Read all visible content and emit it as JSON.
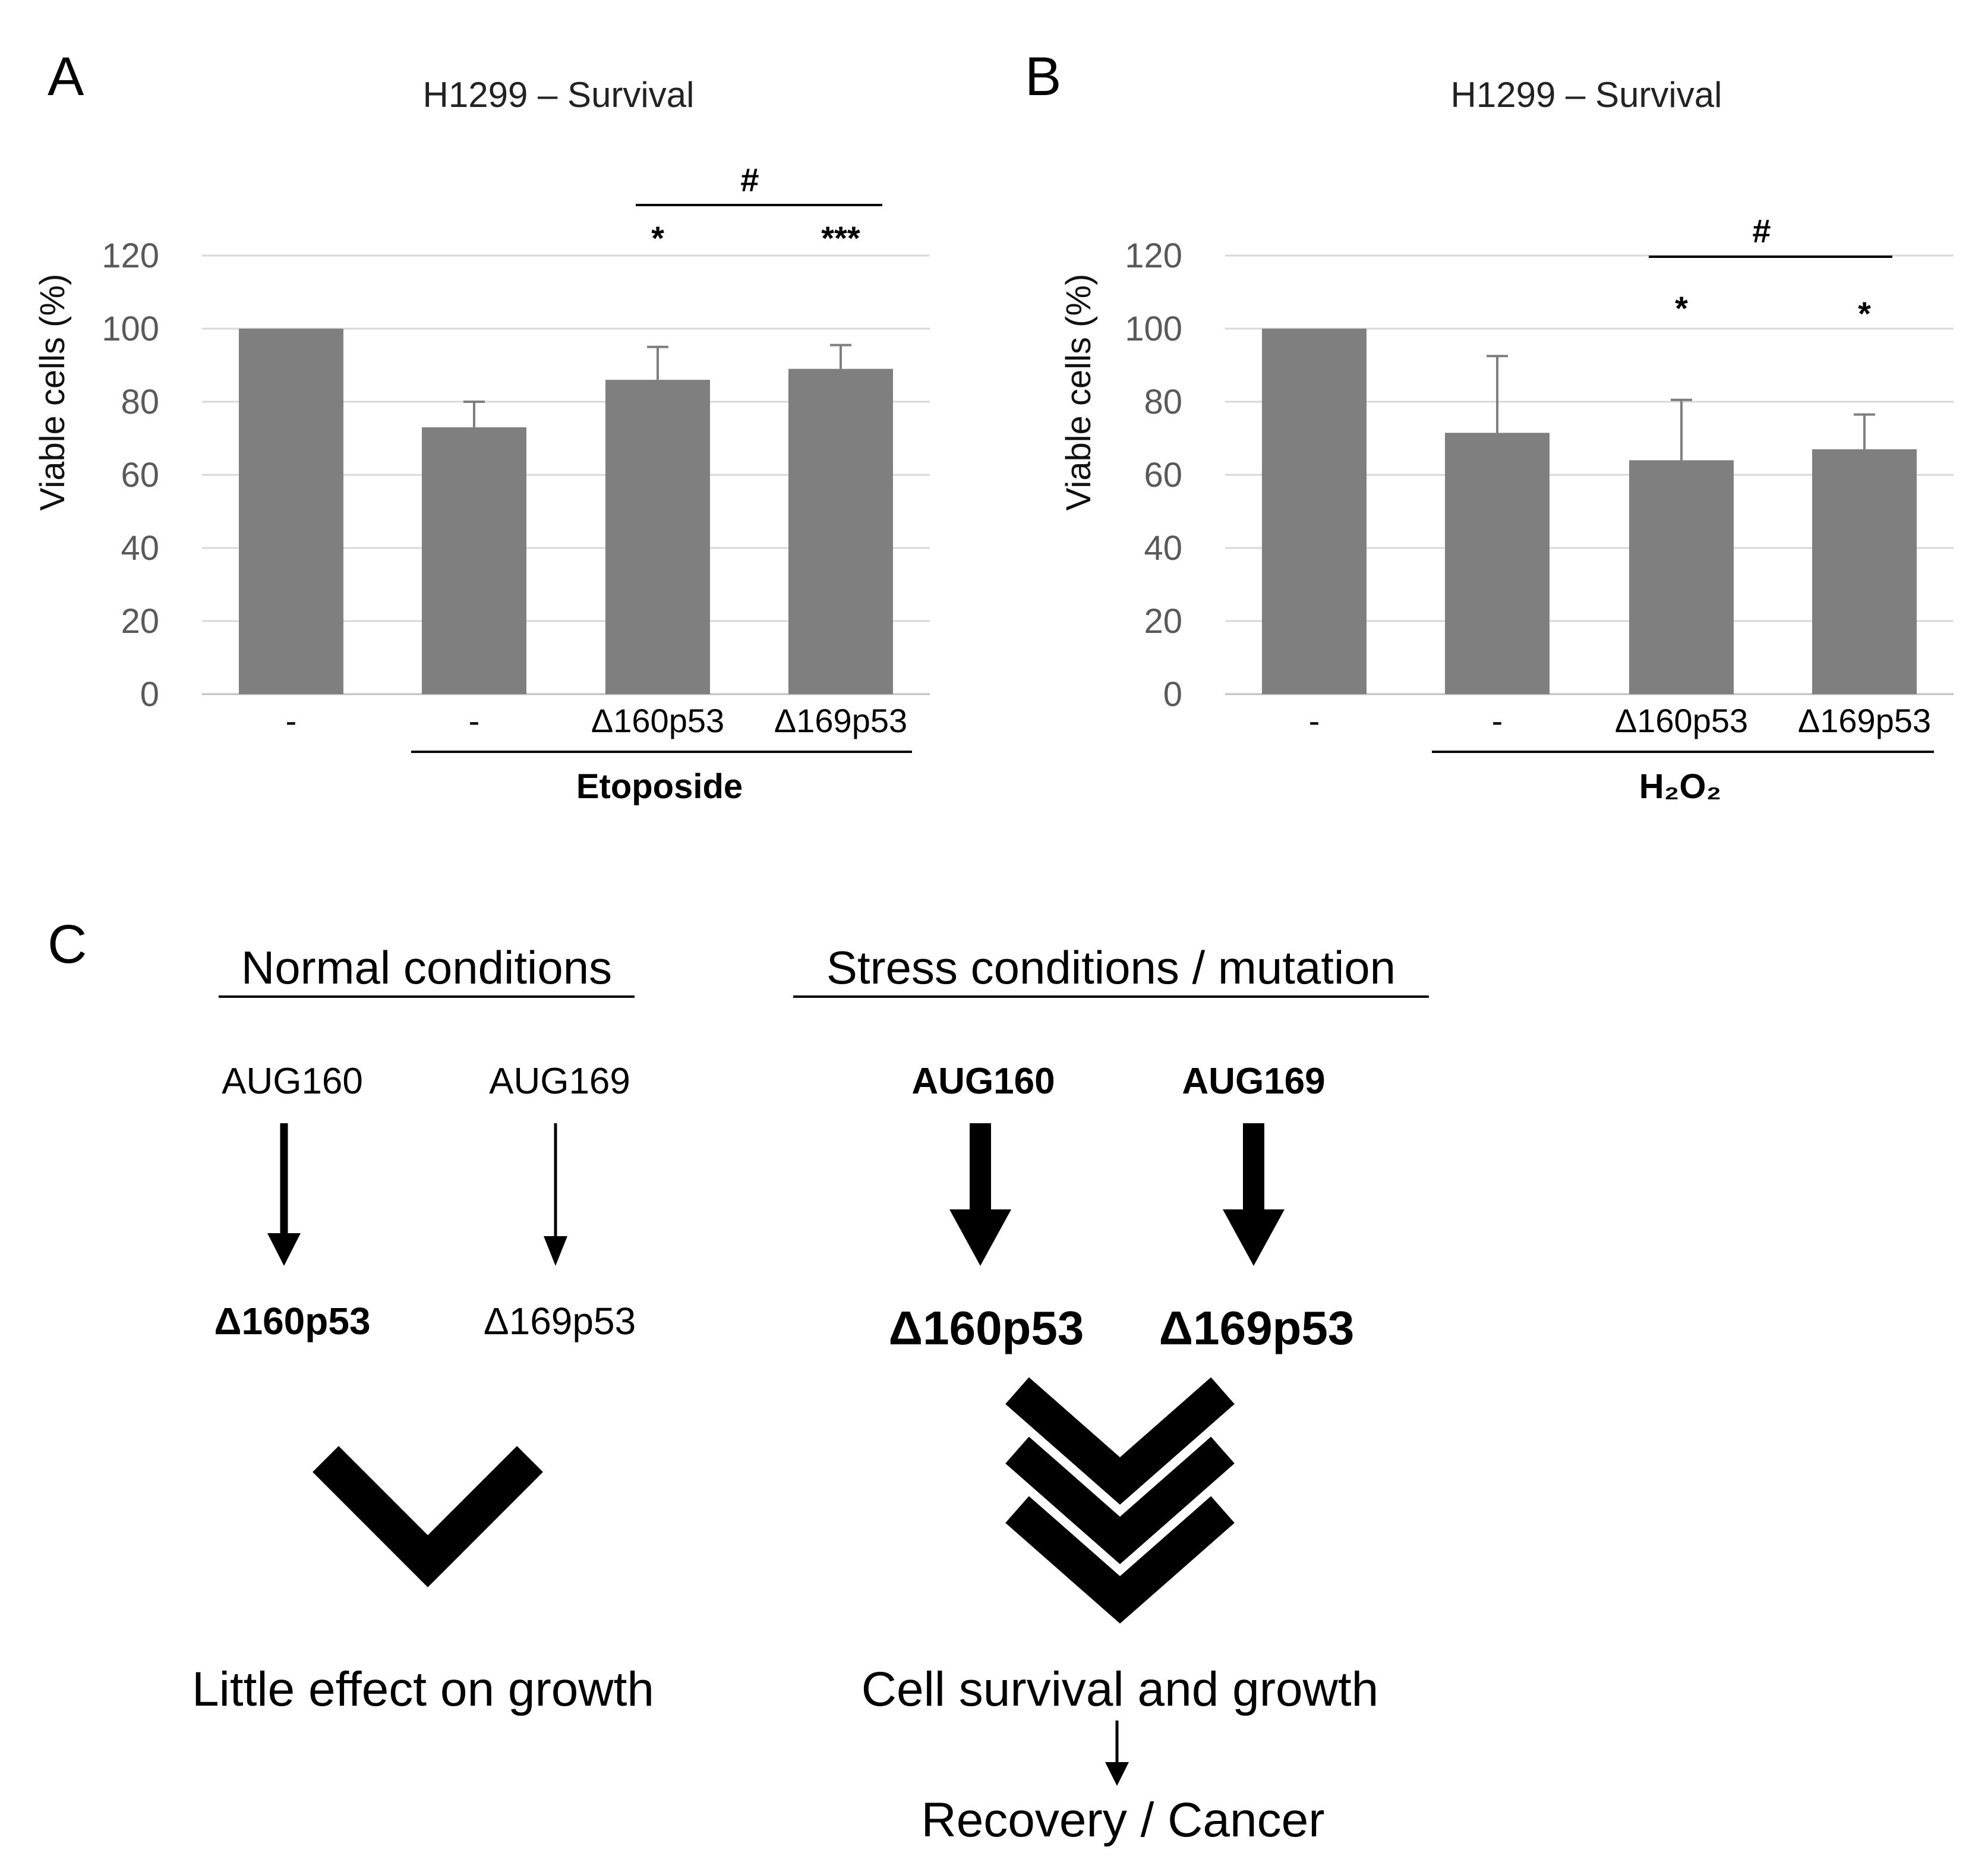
{
  "panels": {
    "a": "A",
    "b": "B",
    "c": "C"
  },
  "chart_data": [
    {
      "type": "bar",
      "panel": "A",
      "title": "H1299 – Survival",
      "ylabel": "Viable cells (%)",
      "xlabel": "",
      "ylim": [
        0,
        120
      ],
      "yticks": [
        0,
        20,
        40,
        60,
        80,
        100,
        120
      ],
      "grid": true,
      "categories": [
        "-",
        "-",
        "Δ160p53",
        "Δ169p53"
      ],
      "values": [
        100,
        73,
        86,
        89
      ],
      "error_upper": [
        0,
        7,
        9,
        6.5
      ],
      "significance": [
        "",
        "",
        "*",
        "***"
      ],
      "bracket_label": "#",
      "group_label": "Etoposide",
      "color": "#7f7f7f"
    },
    {
      "type": "bar",
      "panel": "B",
      "title": "H1299 – Survival",
      "ylabel": "Viable cells (%)",
      "xlabel": "",
      "ylim": [
        0,
        120
      ],
      "yticks": [
        0,
        20,
        40,
        60,
        80,
        100,
        120
      ],
      "grid": true,
      "categories": [
        "-",
        "-",
        "Δ160p53",
        "Δ169p53"
      ],
      "values": [
        100,
        71.5,
        64,
        67
      ],
      "error_upper": [
        0,
        21,
        16.5,
        9.5
      ],
      "significance": [
        "",
        "",
        "*",
        "*"
      ],
      "bracket_label": "#",
      "group_label": "H₂O₂",
      "color": "#7f7f7f"
    }
  ],
  "diagram": {
    "normal": {
      "heading": "Normal conditions",
      "aug1": "AUG160",
      "aug2": "AUG169",
      "iso1": "Δ160p53",
      "iso2": "Δ169p53",
      "result": "Little effect on growth"
    },
    "stress": {
      "heading": "Stress conditions / mutation",
      "aug1": "AUG160",
      "aug2": "AUG169",
      "iso1": "Δ160p53",
      "iso2": "Δ169p53",
      "result": "Cell survival and growth",
      "outcome": "Recovery / Cancer"
    }
  }
}
